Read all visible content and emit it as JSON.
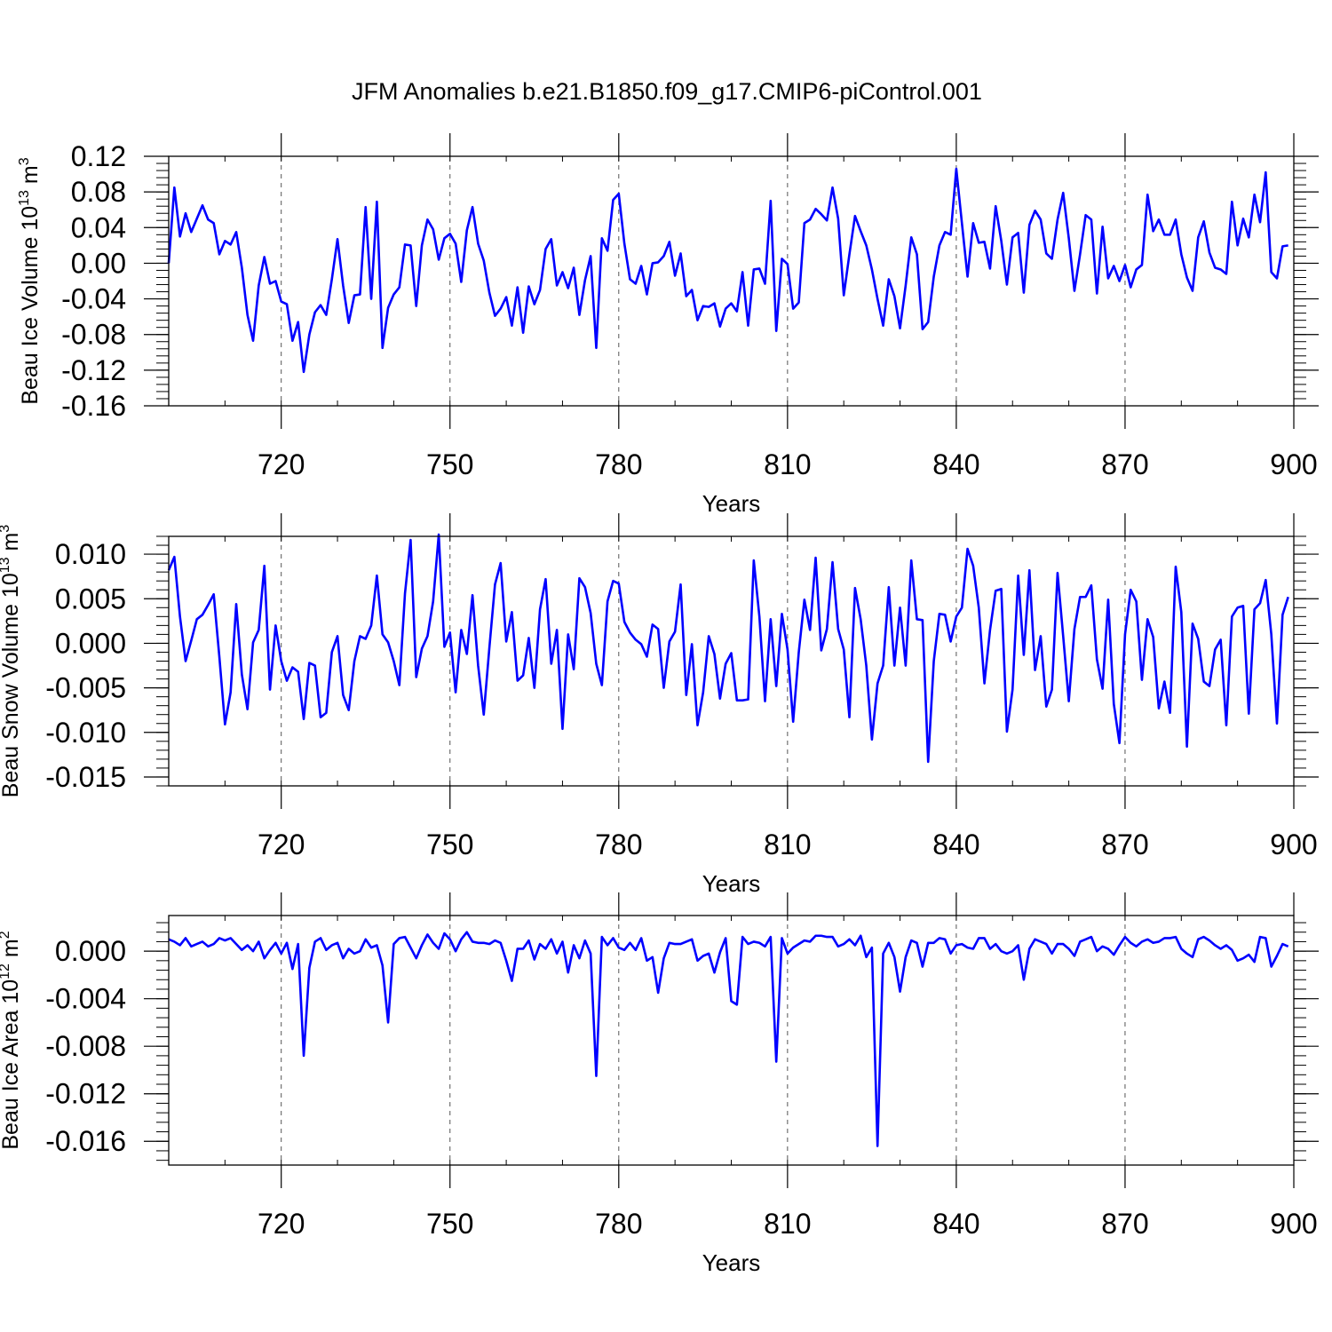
{
  "figure_title": "JFM Anomalies b.e21.B1850.f09_g17.CMIP6-piControl.001",
  "chart_data": [
    {
      "type": "line",
      "title": "JFM Anomalies b.e21.B1850.f09_g17.CMIP6-piControl.001",
      "xlabel": "Years",
      "ylabel": {
        "prefix": "Beau Ice Volume 10",
        "exp": "13",
        "unit": " m",
        "unit_exp": "3"
      },
      "xlim": [
        700,
        900
      ],
      "ylim": [
        -0.16,
        0.12
      ],
      "xticks": [
        720,
        750,
        780,
        810,
        840,
        870,
        900
      ],
      "yticks": [
        0.12,
        0.08,
        0.04,
        0.0,
        -0.04,
        -0.08,
        -0.12,
        -0.16
      ],
      "ytick_labels": [
        "0.12",
        "0.08",
        "0.04",
        "0.00",
        "-0.04",
        "-0.08",
        "-0.12",
        "-0.16"
      ],
      "grid": "vertical dashed at major x ticks",
      "color": "#0000ff",
      "x_start": 700,
      "x_step": 1,
      "values": [
        0.0,
        0.085,
        0.03,
        0.056,
        0.035,
        0.05,
        0.065,
        0.049,
        0.045,
        0.01,
        0.025,
        0.021,
        0.035,
        -0.005,
        -0.058,
        -0.087,
        -0.025,
        0.007,
        -0.023,
        -0.02,
        -0.043,
        -0.046,
        -0.087,
        -0.066,
        -0.122,
        -0.08,
        -0.055,
        -0.047,
        -0.058,
        -0.018,
        0.027,
        -0.025,
        -0.067,
        -0.036,
        -0.035,
        0.063,
        -0.04,
        0.069,
        -0.095,
        -0.05,
        -0.035,
        -0.027,
        0.021,
        0.02,
        -0.048,
        0.02,
        0.049,
        0.038,
        0.004,
        0.028,
        0.033,
        0.022,
        -0.021,
        0.037,
        0.063,
        0.022,
        0.003,
        -0.033,
        -0.059,
        -0.051,
        -0.038,
        -0.07,
        -0.027,
        -0.078,
        -0.026,
        -0.046,
        -0.03,
        0.016,
        0.027,
        -0.025,
        -0.01,
        -0.028,
        -0.005,
        -0.058,
        -0.019,
        0.008,
        -0.095,
        0.028,
        0.014,
        0.071,
        0.078,
        0.022,
        -0.018,
        -0.023,
        -0.003,
        -0.035,
        0.0,
        0.001,
        0.008,
        0.024,
        -0.014,
        0.011,
        -0.037,
        -0.03,
        -0.064,
        -0.048,
        -0.049,
        -0.045,
        -0.071,
        -0.051,
        -0.045,
        -0.054,
        -0.01,
        -0.07,
        -0.007,
        -0.006,
        -0.023,
        0.07,
        -0.076,
        0.005,
        -0.001,
        -0.051,
        -0.044,
        0.045,
        0.049,
        0.061,
        0.055,
        0.048,
        0.085,
        0.05,
        -0.036,
        0.01,
        0.053,
        0.036,
        0.02,
        -0.007,
        -0.04,
        -0.07,
        -0.018,
        -0.037,
        -0.073,
        -0.025,
        0.029,
        0.01,
        -0.074,
        -0.066,
        -0.015,
        0.02,
        0.035,
        0.032,
        0.106,
        0.045,
        -0.015,
        0.045,
        0.023,
        0.024,
        -0.006,
        0.064,
        0.025,
        -0.024,
        0.029,
        0.034,
        -0.033,
        0.043,
        0.059,
        0.049,
        0.011,
        0.005,
        0.049,
        0.079,
        0.028,
        -0.031,
        0.01,
        0.054,
        0.049,
        -0.034,
        0.041,
        -0.017,
        -0.003,
        -0.02,
        -0.002,
        -0.027,
        -0.007,
        -0.002,
        0.077,
        0.036,
        0.049,
        0.032,
        0.032,
        0.049,
        0.01,
        -0.016,
        -0.031,
        0.029,
        0.047,
        0.012,
        -0.005,
        -0.007,
        -0.012,
        0.069,
        0.02,
        0.05,
        0.029,
        0.077,
        0.046,
        0.102,
        -0.01,
        -0.017,
        0.019,
        0.02
      ]
    },
    {
      "type": "line",
      "title": "",
      "xlabel": "Years",
      "ylabel": {
        "prefix": "Beau Snow Volume 10",
        "exp": "13",
        "unit": " m",
        "unit_exp": "3"
      },
      "xlim": [
        700,
        900
      ],
      "ylim": [
        -0.016,
        0.012
      ],
      "xticks": [
        720,
        750,
        780,
        810,
        840,
        870,
        900
      ],
      "yticks": [
        0.01,
        0.005,
        0.0,
        -0.005,
        -0.01,
        -0.015
      ],
      "ytick_labels": [
        "0.010",
        "0.005",
        "0.000",
        "-0.005",
        "-0.010",
        "-0.015"
      ],
      "grid": "vertical dashed at major x ticks",
      "color": "#0000ff",
      "x_start": 700,
      "x_step": 1,
      "values": [
        0.0082,
        0.0097,
        0.003,
        -0.002,
        0.0003,
        0.0027,
        0.0032,
        0.0043,
        0.0055,
        -0.0015,
        -0.0091,
        -0.0055,
        0.0044,
        -0.0035,
        -0.0074,
        0.0001,
        0.0015,
        0.0087,
        -0.0052,
        0.002,
        -0.002,
        -0.0042,
        -0.0027,
        -0.0032,
        -0.0085,
        -0.0022,
        -0.0025,
        -0.0083,
        -0.0078,
        -0.001,
        0.0008,
        -0.0058,
        -0.0075,
        -0.002,
        0.0008,
        0.0005,
        0.002,
        0.0076,
        0.001,
        0.0001,
        -0.002,
        -0.0047,
        0.0056,
        0.0116,
        -0.0038,
        -0.0006,
        0.0008,
        0.0047,
        0.0122,
        -0.0004,
        0.0012,
        -0.0055,
        0.0015,
        -0.0012,
        0.0054,
        -0.0025,
        -0.008,
        -0.0005,
        0.0066,
        0.009,
        0.0002,
        0.0035,
        -0.0042,
        -0.0036,
        0.0006,
        -0.005,
        0.0038,
        0.0072,
        -0.0023,
        0.0015,
        -0.0096,
        0.001,
        -0.0029,
        0.0073,
        0.0063,
        0.0034,
        -0.0023,
        -0.0047,
        0.0047,
        0.007,
        0.0067,
        0.0024,
        0.0012,
        0.0004,
        -0.0001,
        -0.0015,
        0.0021,
        0.0016,
        -0.005,
        0.0002,
        0.0013,
        0.0066,
        -0.0058,
        -0.0001,
        -0.0092,
        -0.0055,
        0.0008,
        -0.0012,
        -0.0062,
        -0.0023,
        -0.0011,
        -0.0064,
        -0.0064,
        -0.0063,
        0.0093,
        0.003,
        -0.0065,
        0.0027,
        -0.0048,
        0.0033,
        -0.0007,
        -0.0088,
        -0.001,
        0.0049,
        0.0015,
        0.0096,
        -0.0008,
        0.0016,
        0.0091,
        0.0016,
        -0.0007,
        -0.0083,
        0.0062,
        0.0027,
        -0.0025,
        -0.0108,
        -0.0045,
        -0.0025,
        0.0063,
        -0.0025,
        0.004,
        -0.0025,
        0.0093,
        0.0027,
        0.0026,
        -0.0133,
        -0.002,
        0.0033,
        0.0032,
        0.0002,
        0.003,
        0.004,
        0.0106,
        0.0087,
        0.004,
        -0.0045,
        0.0015,
        0.0059,
        0.0061,
        -0.0099,
        -0.0052,
        0.0076,
        -0.0013,
        0.0082,
        -0.003,
        0.0008,
        -0.0071,
        -0.0052,
        0.0079,
        0.0008,
        -0.0065,
        0.0016,
        0.0052,
        0.0052,
        0.0065,
        -0.0018,
        -0.0051,
        0.0049,
        -0.0068,
        -0.0112,
        0.001,
        0.006,
        0.0047,
        -0.0041,
        0.0027,
        0.0007,
        -0.0073,
        -0.0043,
        -0.0078,
        0.0086,
        0.0035,
        -0.0116,
        0.0022,
        0.0005,
        -0.0043,
        -0.0048,
        -0.0007,
        0.0004,
        -0.0092,
        0.003,
        0.004,
        0.0042,
        -0.0079,
        0.0038,
        0.0045,
        0.0071,
        0.001,
        -0.009,
        0.0032,
        0.0052
      ]
    },
    {
      "type": "line",
      "title": "",
      "xlabel": "Years",
      "ylabel": {
        "prefix": "Beau Ice Area 10",
        "exp": "12",
        "unit": " m",
        "unit_exp": "2"
      },
      "xlim": [
        700,
        900
      ],
      "ylim": [
        -0.018,
        0.003
      ],
      "xticks": [
        720,
        750,
        780,
        810,
        840,
        870,
        900
      ],
      "yticks": [
        0.0,
        -0.004,
        -0.008,
        -0.012,
        -0.016
      ],
      "ytick_labels": [
        "0.000",
        "-0.004",
        "-0.008",
        "-0.012",
        "-0.016"
      ],
      "grid": "vertical dashed at major x ticks",
      "color": "#0000ff",
      "x_start": 700,
      "x_step": 1,
      "values": [
        0.001,
        0.0008,
        0.0005,
        0.0011,
        0.0004,
        0.0006,
        0.0008,
        0.0004,
        0.0006,
        0.0011,
        0.0009,
        0.0011,
        0.0006,
        0.0001,
        0.0005,
        0.0,
        0.0008,
        -0.0006,
        0.0001,
        0.0007,
        -0.0002,
        0.0007,
        -0.0015,
        0.0006,
        -0.0088,
        -0.0014,
        0.0008,
        0.0011,
        0.0001,
        0.0005,
        0.0007,
        -0.0006,
        0.0002,
        -0.0002,
        0.0,
        0.001,
        0.0003,
        0.0005,
        -0.0012,
        -0.006,
        0.0006,
        0.0011,
        0.0012,
        0.0003,
        -0.0006,
        0.0005,
        0.0014,
        0.0007,
        0.0002,
        0.0015,
        0.001,
        0.0,
        0.001,
        0.0016,
        0.0008,
        0.0007,
        0.0007,
        0.0006,
        0.0009,
        0.0007,
        -0.0008,
        -0.0025,
        0.0002,
        0.0002,
        0.0009,
        -0.0007,
        0.0006,
        0.0002,
        0.001,
        -0.0002,
        0.0008,
        -0.0018,
        0.0005,
        -0.0006,
        0.0009,
        -0.0002,
        -0.0105,
        0.0012,
        0.0005,
        0.0011,
        0.0003,
        0.0001,
        0.0007,
        0.0001,
        0.0011,
        -0.0008,
        -0.0005,
        -0.0035,
        -0.0006,
        0.0007,
        0.0006,
        0.0006,
        0.0008,
        0.001,
        -0.0008,
        -0.0004,
        -0.0002,
        -0.0018,
        -0.0001,
        0.0011,
        -0.0042,
        -0.0045,
        0.0012,
        0.0006,
        0.0008,
        0.0007,
        0.0004,
        0.0012,
        -0.0093,
        0.0011,
        -0.0002,
        0.0003,
        0.0006,
        0.0009,
        0.0008,
        0.0013,
        0.0013,
        0.0012,
        0.0012,
        0.0004,
        0.0006,
        0.001,
        0.0005,
        0.0013,
        -0.0005,
        0.0003,
        -0.0164,
        -0.0002,
        0.0007,
        -0.0005,
        -0.0034,
        -0.0005,
        0.0009,
        0.0007,
        -0.0013,
        0.0007,
        0.0007,
        0.0011,
        0.001,
        -0.0002,
        0.0005,
        0.0006,
        0.0003,
        0.0002,
        0.0011,
        0.0011,
        0.0002,
        0.0006,
        0.0,
        -0.0002,
        0.0,
        0.0005,
        -0.0024,
        0.0002,
        0.001,
        0.0008,
        0.0006,
        -0.0002,
        0.0006,
        0.0006,
        0.0002,
        -0.0004,
        0.0008,
        0.001,
        0.0012,
        0.0,
        0.0004,
        0.0002,
        -0.0003,
        0.0005,
        0.0012,
        0.0007,
        0.0004,
        0.0008,
        0.001,
        0.0007,
        0.0008,
        0.0011,
        0.0011,
        0.0012,
        0.0002,
        -0.0002,
        -0.0005,
        0.001,
        0.0012,
        0.0009,
        0.0005,
        0.0002,
        0.0005,
        0.0001,
        -0.0008,
        -0.0006,
        -0.0003,
        -0.0009,
        0.0012,
        0.0011,
        -0.0013,
        -0.0004,
        0.0006,
        0.0004
      ]
    }
  ]
}
